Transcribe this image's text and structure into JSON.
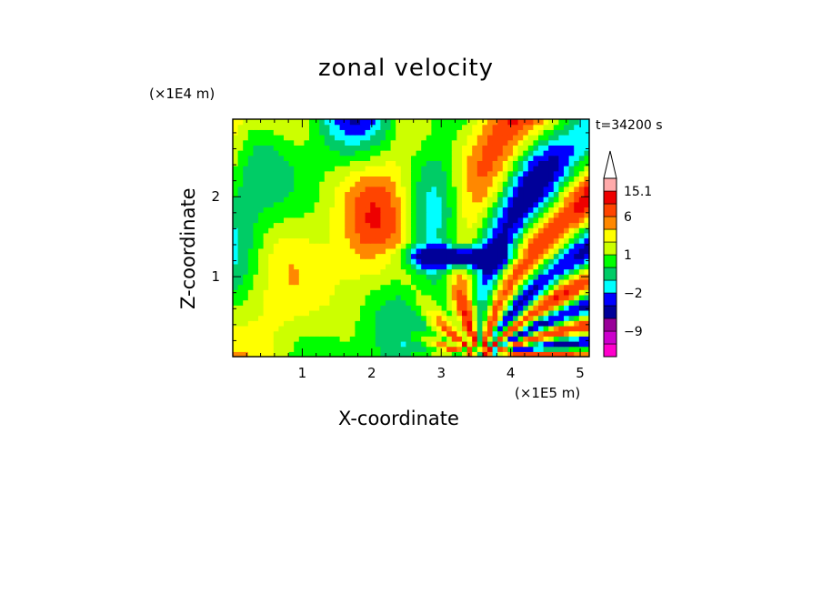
{
  "chart_data": {
    "type": "heatmap",
    "title": "zonal velocity",
    "xlabel": "X-coordinate",
    "ylabel": "Z-coordinate",
    "x_unit_label": "(×1E5 m)",
    "y_unit_label": "(×1E4 m)",
    "time_label": "t=34200 s",
    "xlim": [
      0,
      5.13
    ],
    "ylim": [
      0,
      2.97
    ],
    "x_ticks": [
      "1",
      "2",
      "3",
      "4",
      "5"
    ],
    "y_ticks": [
      "1",
      "2"
    ],
    "colorbar": {
      "labels": [
        "15.1",
        "6",
        "1",
        "−2",
        "−9"
      ],
      "levels": [
        "<-12",
        "-12..-9",
        "-9..-6",
        "-6..-4",
        "-4..-2",
        "-2..-1",
        "-1..0",
        "0..1",
        "1..2",
        "2..4",
        "4..6",
        "6..9",
        "9..12",
        "12..15.1",
        ">15.1"
      ],
      "colors": [
        "#ff00cc",
        "#cc00cc",
        "#990099",
        "#000099",
        "#0000ff",
        "#00ffff",
        "#00cc66",
        "#00ff00",
        "#ccff00",
        "#ffff00",
        "#ff8800",
        "#ff4400",
        "#ee0000",
        "#ffaaaa",
        "#ffffff"
      ]
    }
  }
}
